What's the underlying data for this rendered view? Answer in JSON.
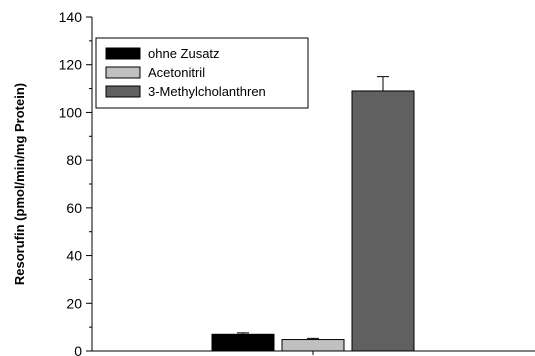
{
  "chart_data": {
    "type": "bar",
    "title": "",
    "xlabel": "",
    "ylabel": "Resorufin (pmol/min/mg Protein)",
    "ylim": [
      0,
      140
    ],
    "yticks": [
      0,
      20,
      40,
      60,
      80,
      100,
      120,
      140
    ],
    "grid": false,
    "legend_position": "top-left",
    "series": [
      {
        "name": "ohne Zusatz",
        "value": 7,
        "error": 0.6,
        "color": "#000000"
      },
      {
        "name": "Acetonitril",
        "value": 4.8,
        "error": 0.5,
        "color": "#c0c0c0"
      },
      {
        "name": "3-Methylcholanthren",
        "value": 109,
        "error": 6,
        "color": "#606060"
      }
    ]
  }
}
